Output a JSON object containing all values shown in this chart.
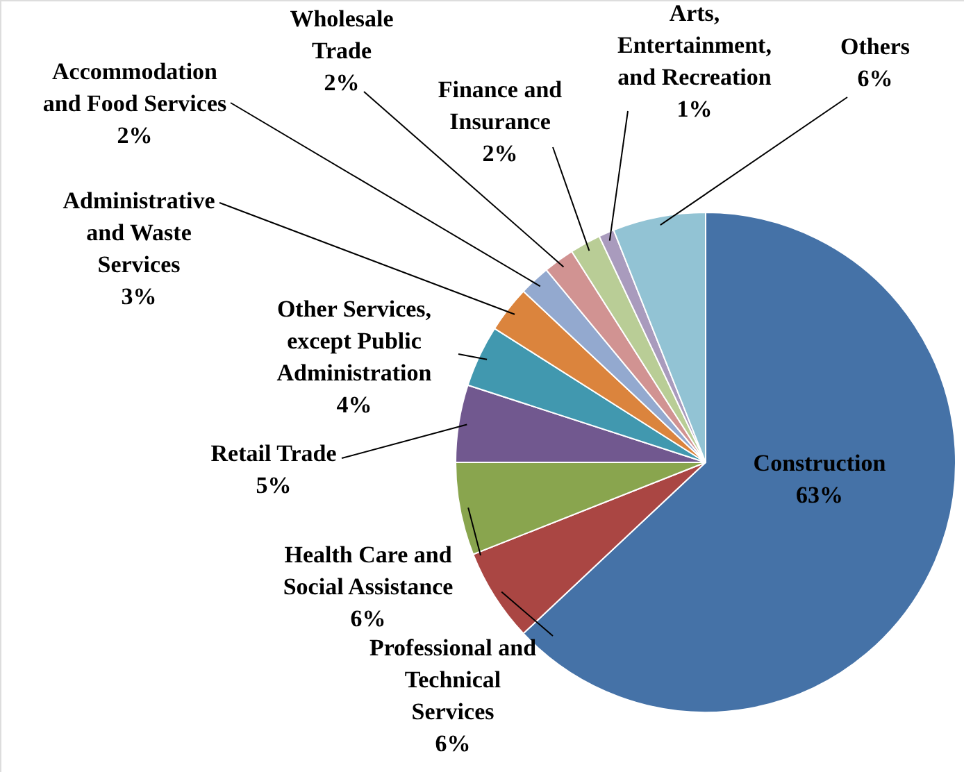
{
  "chart_data": {
    "type": "pie",
    "categories": [
      "Construction",
      "Professional and\nTechnical\nServices",
      "Health Care and\nSocial Assistance",
      "Retail Trade",
      "Other Services,\nexcept Public\nAdministration",
      "Administrative\nand Waste\nServices",
      "Accommodation\nand Food Services",
      "Wholesale\nTrade",
      "Finance and\nInsurance",
      "Arts,\nEntertainment,\nand Recreation",
      "Others"
    ],
    "values": [
      63,
      6,
      6,
      5,
      4,
      3,
      2,
      2,
      2,
      1,
      6
    ],
    "value_labels": [
      "63%",
      "6%",
      "6%",
      "5%",
      "4%",
      "3%",
      "2%",
      "2%",
      "2%",
      "1%",
      "6%"
    ],
    "colors": [
      "#4572a7",
      "#aa4643",
      "#89a54e",
      "#71588f",
      "#4198af",
      "#db843d",
      "#93a9cf",
      "#d19392",
      "#b9cd96",
      "#a99bbd",
      "#92c3d4"
    ]
  }
}
